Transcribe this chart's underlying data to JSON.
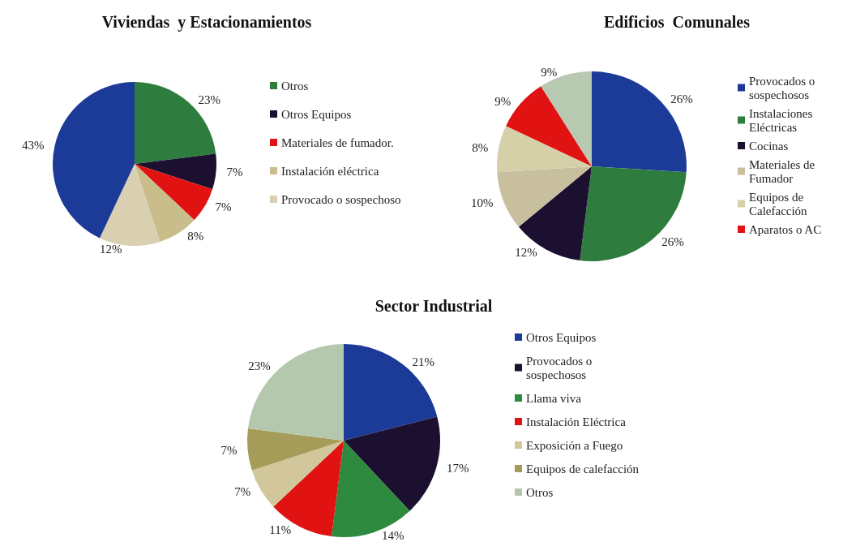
{
  "chart_data": [
    {
      "type": "pie",
      "title": "Viviendas  y Estacionamientos",
      "categories": [
        "Otros",
        "Otros Equipos",
        "Materiales de fumador.",
        "Instalación eléctrica",
        "Provocado o sospechoso",
        null
      ],
      "values": [
        23,
        7,
        7,
        8,
        12,
        43
      ],
      "value_labels": [
        "23%",
        "7%",
        "7%",
        "8%",
        "12%",
        "43%"
      ],
      "colors": [
        "#2e7d3e",
        "#1c1030",
        "#e01212",
        "#c9bd8c",
        "#d8d0b0",
        "#1c3b98"
      ],
      "legend": "right"
    },
    {
      "type": "pie",
      "title": "Edificios  Comunales",
      "categories": [
        "Provocados o sospechosos",
        "Instalaciones Eléctricas",
        "Cocinas",
        "Materiales de Fumador",
        "Equipos de Calefacción",
        "Aparatos o AC",
        null
      ],
      "values": [
        26,
        26,
        12,
        10,
        8,
        9,
        9
      ],
      "value_labels": [
        "26%",
        "26%",
        "12%",
        "10%",
        "8%",
        "9%",
        "9%"
      ],
      "colors": [
        "#1c3b98",
        "#2e7d3e",
        "#1c1030",
        "#c8bf9e",
        "#d5d0a8",
        "#e01212",
        "#b8c9b2"
      ],
      "legend": "right"
    },
    {
      "type": "pie",
      "title": "Sector Industrial",
      "categories": [
        "Otros Equipos",
        "Provocados o sospechosos",
        "Llama viva",
        "Instalación Eléctrica",
        "Exposición a Fuego",
        "Equipos de calefacción",
        "Otros"
      ],
      "values": [
        21,
        17,
        14,
        11,
        7,
        7,
        23
      ],
      "value_labels": [
        "21%",
        "17%",
        "14%",
        "11%",
        "7%",
        "7%",
        "23%"
      ],
      "colors": [
        "#1c3b98",
        "#1c1030",
        "#2e8a3e",
        "#e01212",
        "#d1c79a",
        "#a59c5a",
        "#b4c8ae"
      ],
      "legend": "right"
    }
  ]
}
